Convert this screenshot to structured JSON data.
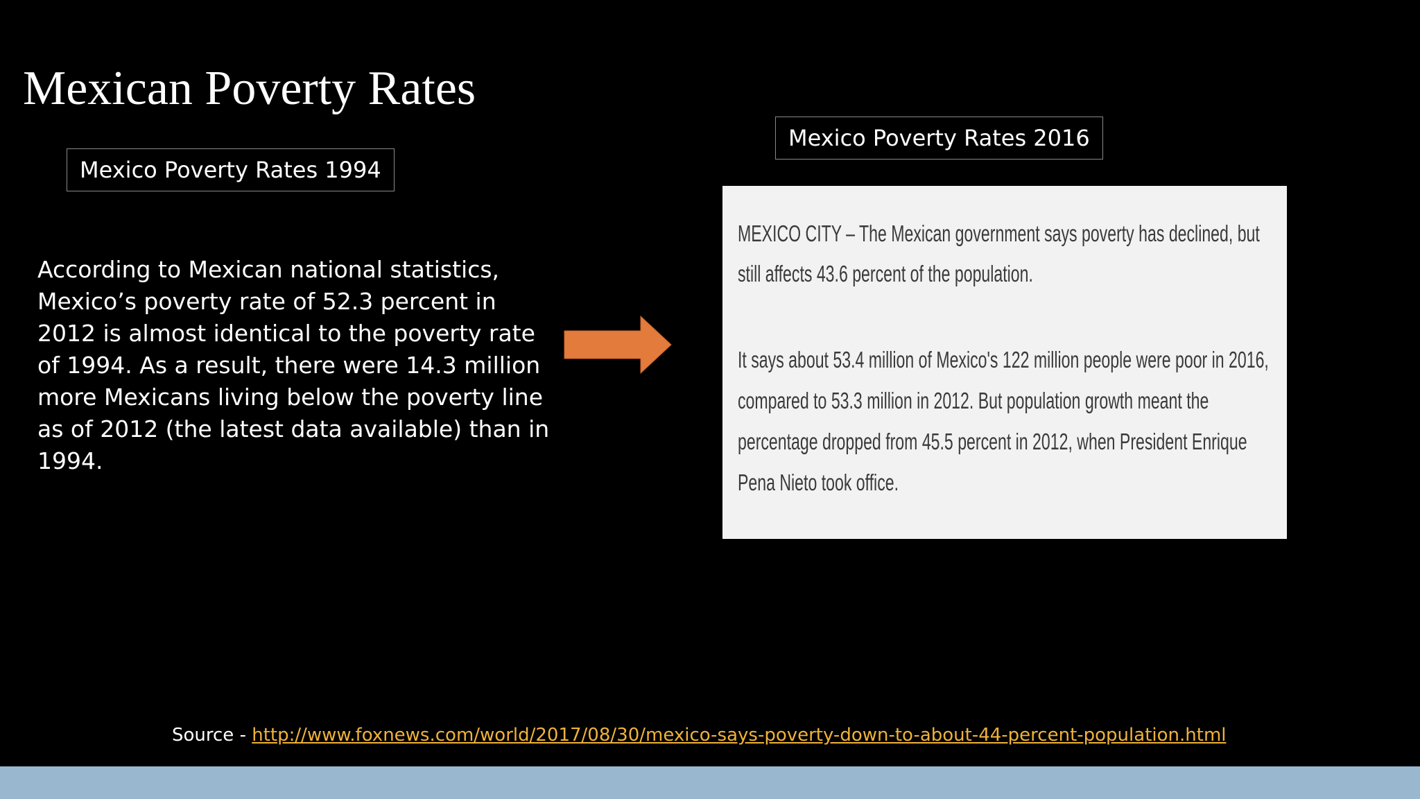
{
  "slide": {
    "title": "Mexican Poverty Rates",
    "label_1994": "Mexico Poverty Rates 1994",
    "label_2016": "Mexico Poverty Rates 2016",
    "body_lines": [
      "According to Mexican national statistics,",
      "Mexico’s poverty rate of 52.3 percent in",
      "2012 is almost identical to the poverty rate",
      "of 1994. As a result, there were 14.3 million",
      "more Mexicans living below the poverty line",
      "as of 2012 (the latest data available) than in",
      "1994."
    ],
    "article": {
      "paragraph_1": [
        "MEXICO CITY –  The Mexican government says poverty has declined, but",
        "still affects 43.6 percent of the population."
      ],
      "paragraph_2": [
        "It says about 53.4 million of Mexico's 122 million people were poor in 2016,",
        "compared to 53.3 million in 2012. But population growth meant the",
        "percentage dropped from 45.5 percent in 2012, when President Enrique",
        "Pena Nieto took office."
      ]
    },
    "source_label": "Source - ",
    "source_url": "http://www.foxnews.com/world/2017/08/30/mexico-says-poverty-down-to-about-44-percent-population.html"
  }
}
